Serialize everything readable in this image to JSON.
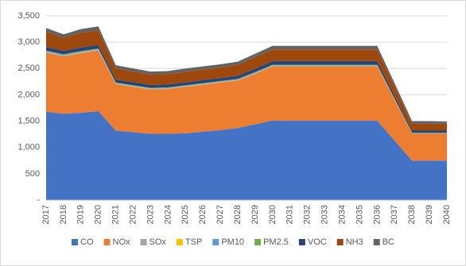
{
  "chart_data": {
    "type": "stacked-area",
    "categories": [
      "2017",
      "2018",
      "2019",
      "2020",
      "2021",
      "2022",
      "2023",
      "2024",
      "2025",
      "2026",
      "2027",
      "2028",
      "2029",
      "2030",
      "2031",
      "2032",
      "2033",
      "2034",
      "2035",
      "2036",
      "2037",
      "2038",
      "2039",
      "2040"
    ],
    "series": [
      {
        "name": "CO",
        "color": "#4472c4",
        "values": [
          1680,
          1640,
          1660,
          1690,
          1320,
          1290,
          1260,
          1260,
          1270,
          1300,
          1330,
          1370,
          1440,
          1510,
          1510,
          1510,
          1510,
          1510,
          1510,
          1510,
          1130,
          750,
          750,
          750
        ]
      },
      {
        "name": "NOx",
        "color": "#ed7d31",
        "values": [
          1120,
          1090,
          1130,
          1150,
          880,
          860,
          840,
          850,
          880,
          890,
          900,
          900,
          960,
          1030,
          1030,
          1030,
          1030,
          1030,
          1030,
          1030,
          770,
          510,
          510,
          510
        ]
      },
      {
        "name": "SOx",
        "color": "#a5a5a5",
        "values": [
          15,
          15,
          15,
          15,
          12,
          12,
          12,
          12,
          12,
          12,
          12,
          12,
          12,
          12,
          12,
          12,
          12,
          12,
          12,
          12,
          10,
          8,
          8,
          8
        ]
      },
      {
        "name": "TSP",
        "color": "#ffc000",
        "values": [
          5,
          5,
          5,
          5,
          4,
          4,
          4,
          4,
          4,
          4,
          4,
          4,
          4,
          4,
          4,
          4,
          4,
          4,
          4,
          4,
          3,
          2,
          2,
          2
        ]
      },
      {
        "name": "PM10",
        "color": "#5b9bd5",
        "values": [
          10,
          10,
          10,
          10,
          8,
          8,
          8,
          8,
          8,
          8,
          8,
          8,
          8,
          8,
          8,
          8,
          8,
          8,
          8,
          8,
          6,
          5,
          5,
          5
        ]
      },
      {
        "name": "PM2.5",
        "color": "#70ad47",
        "values": [
          10,
          10,
          10,
          10,
          8,
          8,
          8,
          8,
          8,
          8,
          8,
          8,
          8,
          8,
          8,
          8,
          8,
          8,
          8,
          8,
          6,
          5,
          5,
          5
        ]
      },
      {
        "name": "VOC",
        "color": "#264478",
        "values": [
          70,
          65,
          70,
          70,
          60,
          58,
          55,
          55,
          55,
          58,
          58,
          60,
          65,
          70,
          70,
          70,
          70,
          70,
          70,
          70,
          55,
          40,
          40,
          40
        ]
      },
      {
        "name": "NH3",
        "color": "#9e480e",
        "values": [
          290,
          250,
          280,
          280,
          210,
          200,
          200,
          200,
          200,
          200,
          200,
          210,
          220,
          220,
          220,
          220,
          220,
          220,
          220,
          220,
          180,
          130,
          130,
          130
        ]
      },
      {
        "name": "BC",
        "color": "#636363",
        "values": [
          70,
          65,
          70,
          70,
          60,
          60,
          55,
          55,
          63,
          60,
          60,
          58,
          65,
          68,
          68,
          68,
          68,
          68,
          68,
          68,
          60,
          50,
          50,
          40
        ]
      }
    ],
    "ylim": [
      0,
      3500
    ],
    "yticks": [
      {
        "value": 0,
        "label": "-"
      },
      500,
      {
        "value": 1000,
        "label": "1,000"
      },
      {
        "value": 1500,
        "label": "1,500"
      },
      {
        "value": 2000,
        "label": "2,000"
      },
      {
        "value": 2500,
        "label": "2,500"
      },
      {
        "value": 3000,
        "label": "3,000"
      },
      {
        "value": 3500,
        "label": "3,500"
      }
    ],
    "grid": true,
    "legend": "bottom"
  }
}
